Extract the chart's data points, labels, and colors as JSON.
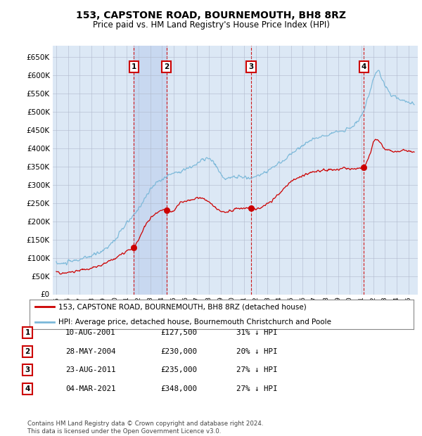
{
  "title": "153, CAPSTONE ROAD, BOURNEMOUTH, BH8 8RZ",
  "subtitle": "Price paid vs. HM Land Registry's House Price Index (HPI)",
  "legend_line1": "153, CAPSTONE ROAD, BOURNEMOUTH, BH8 8RZ (detached house)",
  "legend_line2": "HPI: Average price, detached house, Bournemouth Christchurch and Poole",
  "footer1": "Contains HM Land Registry data © Crown copyright and database right 2024.",
  "footer2": "This data is licensed under the Open Government Licence v3.0.",
  "hpi_color": "#7ab8d9",
  "price_color": "#cc0000",
  "marker_color": "#cc0000",
  "plot_bg": "#dce8f5",
  "fig_bg": "#ffffff",
  "ylim": [
    0,
    680000
  ],
  "yticks": [
    0,
    50000,
    100000,
    150000,
    200000,
    250000,
    300000,
    350000,
    400000,
    450000,
    500000,
    550000,
    600000,
    650000
  ],
  "xlim_start": 1994.7,
  "xlim_end": 2025.8,
  "sales": [
    {
      "label": "1",
      "date": "10-AUG-2001",
      "price": 127500,
      "pct": "31% ↓ HPI",
      "year": 2001.6
    },
    {
      "label": "2",
      "date": "28-MAY-2004",
      "price": 230000,
      "pct": "20% ↓ HPI",
      "year": 2004.4
    },
    {
      "label": "3",
      "date": "23-AUG-2011",
      "price": 235000,
      "pct": "27% ↓ HPI",
      "year": 2011.6
    },
    {
      "label": "4",
      "date": "04-MAR-2021",
      "price": 348000,
      "pct": "27% ↓ HPI",
      "year": 2021.2
    }
  ],
  "highlight_band": [
    2001.6,
    2004.4
  ],
  "highlight_color": "#c8d8f0"
}
